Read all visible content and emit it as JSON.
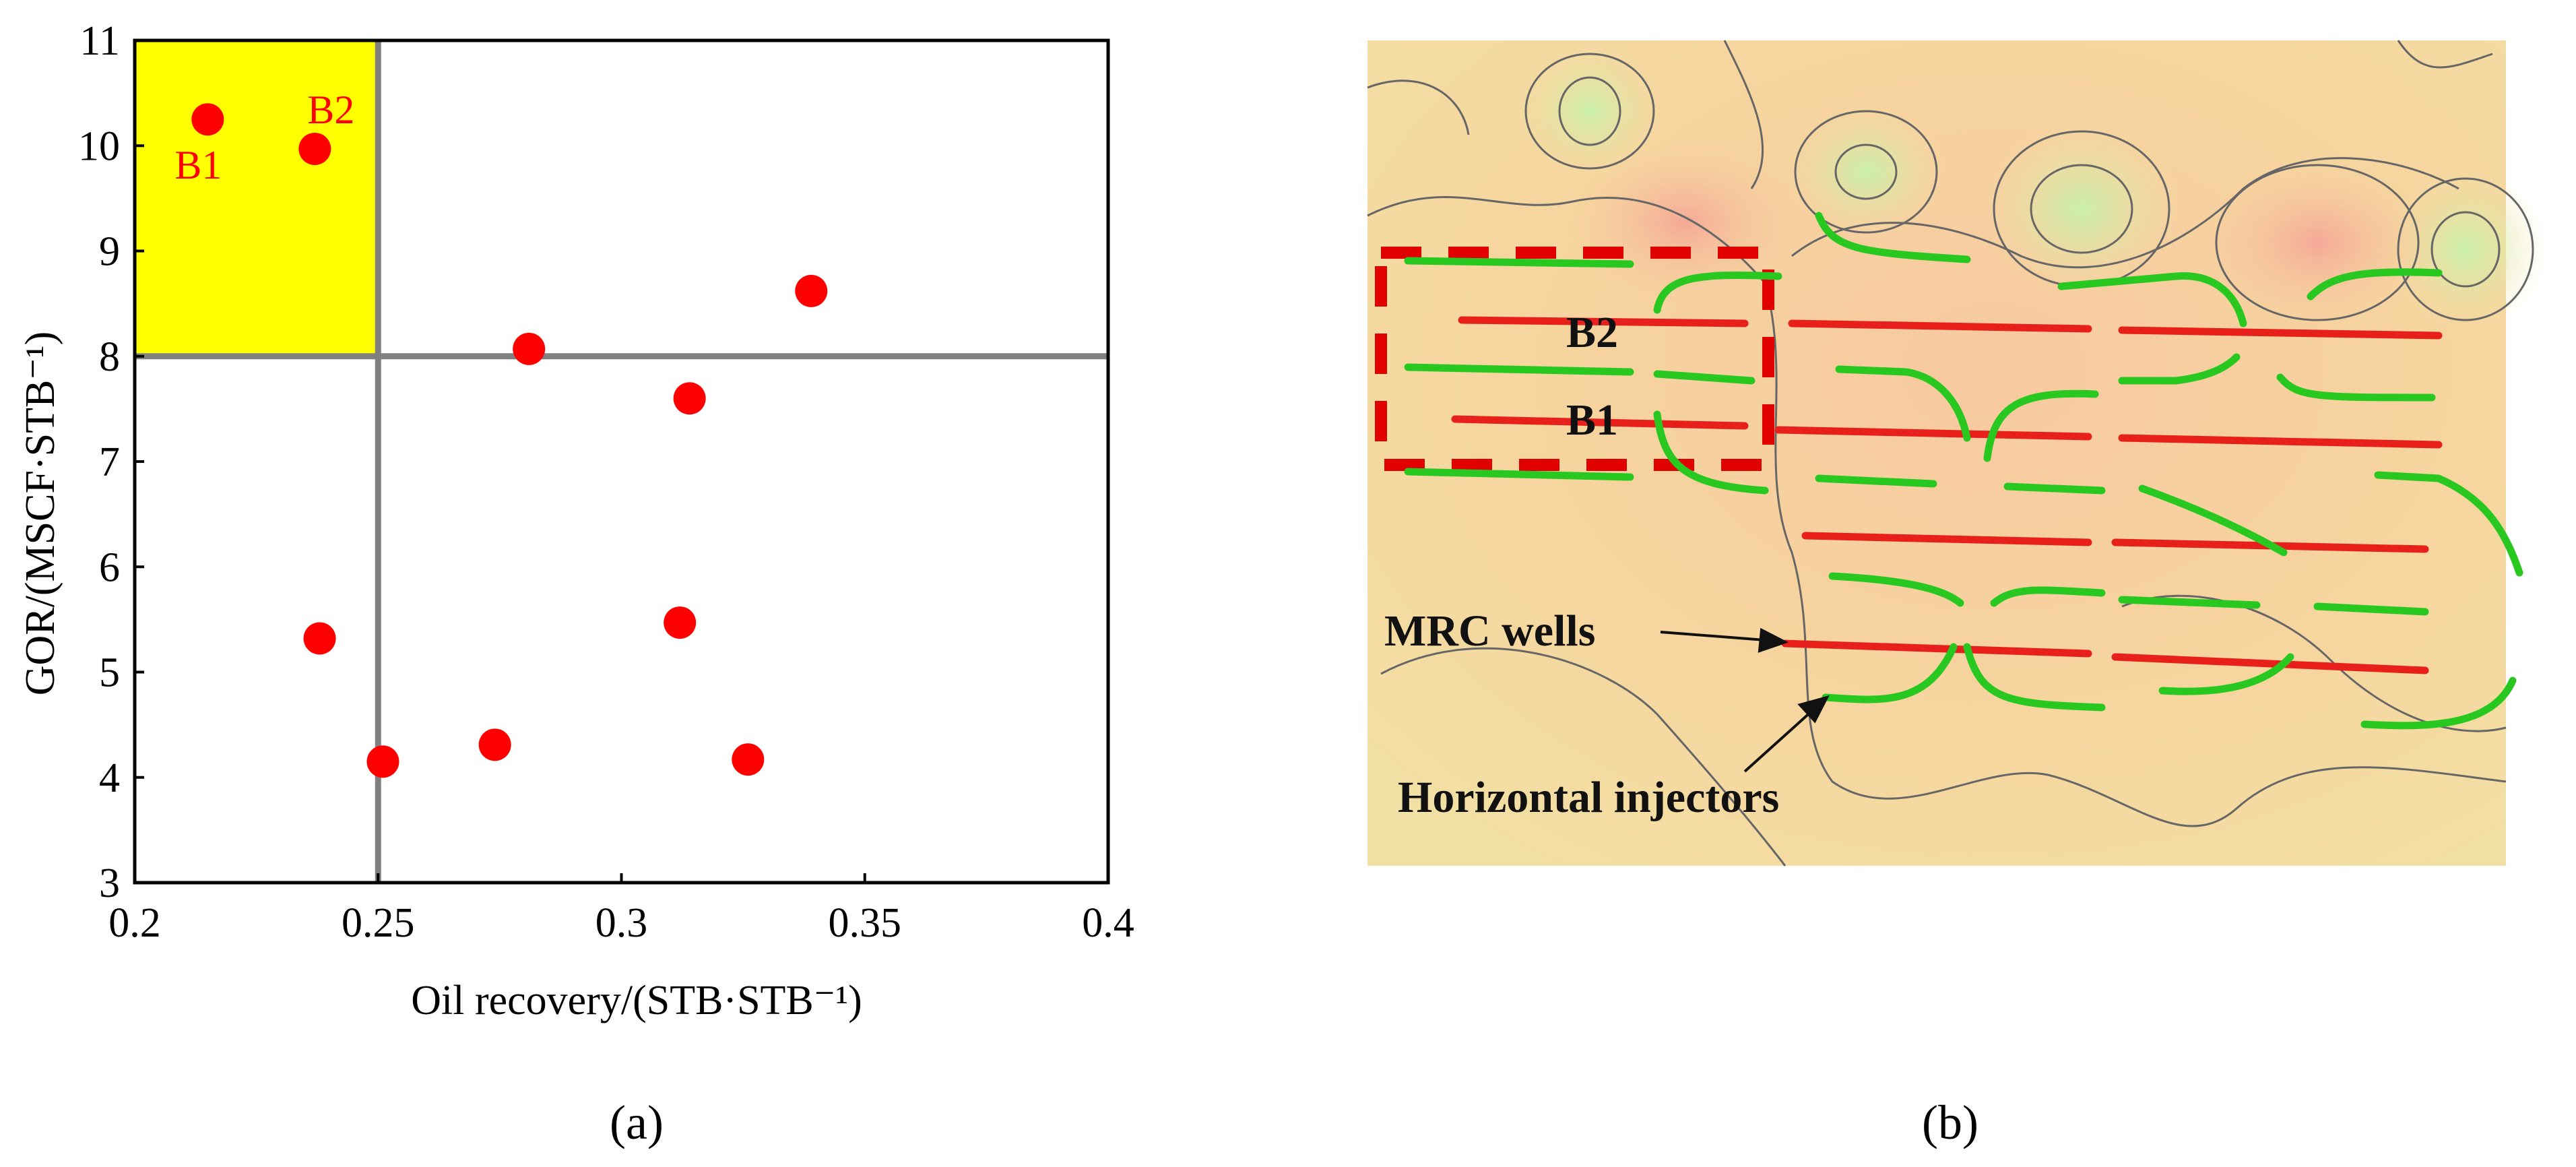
{
  "chart_data": {
    "type": "scatter",
    "xlabel": "Oil recovery/(STB·STB⁻¹)",
    "ylabel": "GOR/(MSCF·STB⁻¹)",
    "xlim": [
      0.2,
      0.4
    ],
    "ylim": [
      3,
      11
    ],
    "x_ticks": [
      "0.2",
      "0.25",
      "0.3",
      "0.35",
      "0.4"
    ],
    "y_ticks": [
      "3",
      "4",
      "5",
      "6",
      "7",
      "8",
      "9",
      "10",
      "11"
    ],
    "thresholds": {
      "x": 0.25,
      "y": 8
    },
    "highlight_region": {
      "x": [
        0.2,
        0.25
      ],
      "y": [
        8,
        11
      ],
      "color": "#ffff00"
    },
    "marker_color": "#ff0000",
    "points": [
      {
        "x": 0.215,
        "y": 10.25,
        "label": "B1"
      },
      {
        "x": 0.237,
        "y": 9.97,
        "label": "B2"
      },
      {
        "x": 0.281,
        "y": 8.07,
        "label": ""
      },
      {
        "x": 0.339,
        "y": 8.62,
        "label": ""
      },
      {
        "x": 0.314,
        "y": 7.6,
        "label": ""
      },
      {
        "x": 0.238,
        "y": 5.32,
        "label": ""
      },
      {
        "x": 0.312,
        "y": 5.47,
        "label": ""
      },
      {
        "x": 0.251,
        "y": 4.15,
        "label": ""
      },
      {
        "x": 0.274,
        "y": 4.31,
        "label": ""
      },
      {
        "x": 0.326,
        "y": 4.17,
        "label": ""
      }
    ]
  },
  "panels": {
    "a": "(a)",
    "b": "(b)"
  },
  "map": {
    "labels": {
      "b2": "B2",
      "b1": "B1",
      "mrc": "MRC wells",
      "injectors": "Horizontal injectors"
    },
    "colors": {
      "producer": "#e8201c",
      "injector": "#28c820",
      "box": "#e00000"
    }
  }
}
